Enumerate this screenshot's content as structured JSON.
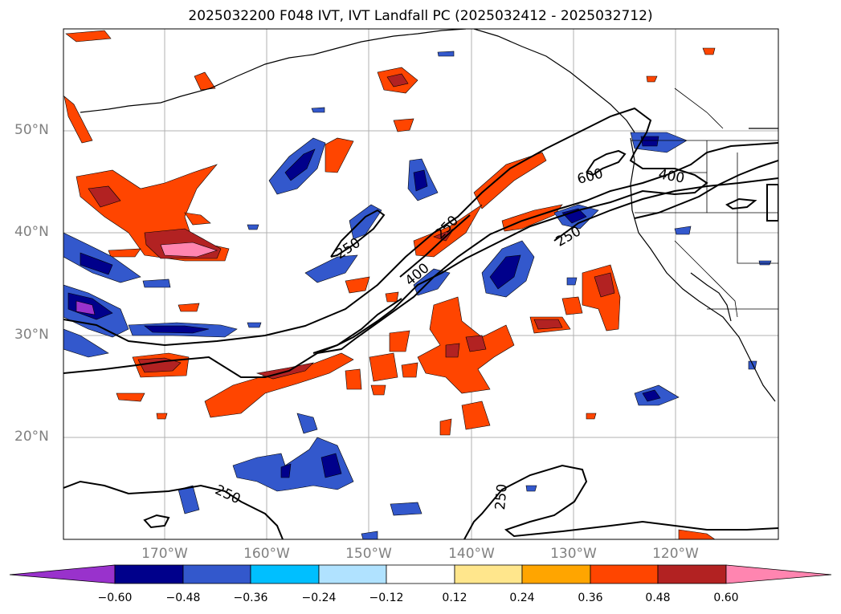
{
  "title": "2025032200 F048 IVT, IVT Landfall PC (2025032412 - 2025032712)",
  "map": {
    "latitude_labels": [
      "50°N",
      "40°N",
      "30°N",
      "20°N"
    ],
    "longitude_labels": [
      "170°W",
      "160°W",
      "150°W",
      "140°W",
      "130°W",
      "120°W"
    ],
    "contour_labels": [
      "250",
      "250",
      "400",
      "600",
      "250",
      "400",
      "250",
      "250"
    ]
  },
  "colorbar": {
    "ticks": [
      "−0.60",
      "−0.48",
      "−0.36",
      "−0.24",
      "−0.12",
      "0.12",
      "0.24",
      "0.36",
      "0.48",
      "0.60"
    ],
    "colors": [
      "#9932cc",
      "#00008b",
      "#3358cc",
      "#00bfff",
      "#b0e2ff",
      "#ffffff",
      "#ffe68c",
      "#ffa500",
      "#ff4500",
      "#b22222",
      "#ff85b0"
    ],
    "extend": "both"
  }
}
